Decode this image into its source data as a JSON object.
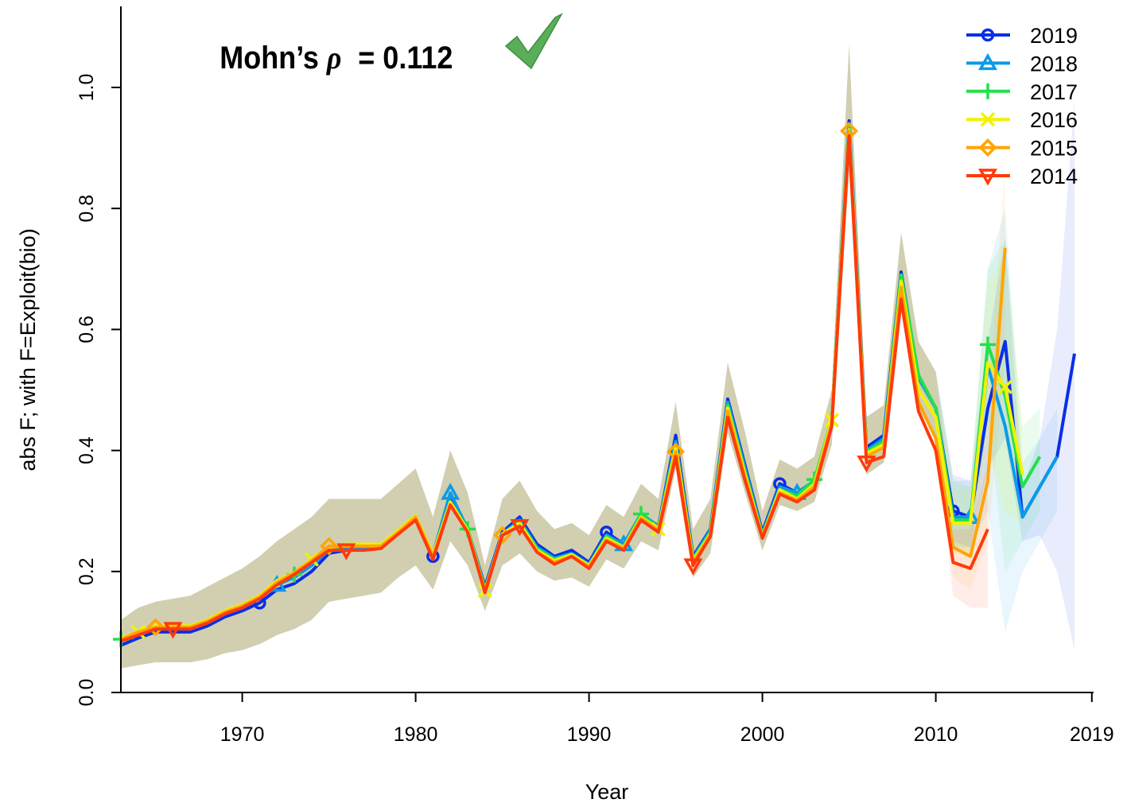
{
  "chart_data": {
    "type": "line",
    "x_label": "Year",
    "y_label": "abs F; with F=Exploit(bio)",
    "annotation": {
      "text": "Mohn’s",
      "symbol": "ρ",
      "value_text": "= 0.112"
    },
    "legend": "top-right",
    "x": [
      1963,
      1964,
      1965,
      1966,
      1967,
      1968,
      1969,
      1970,
      1971,
      1972,
      1973,
      1974,
      1975,
      1976,
      1977,
      1978,
      1979,
      1980,
      1981,
      1982,
      1983,
      1984,
      1985,
      1986,
      1987,
      1988,
      1989,
      1990,
      1991,
      1992,
      1993,
      1994,
      1995,
      1996,
      1997,
      1998,
      1999,
      2000,
      2001,
      2002,
      2003,
      2004,
      2005,
      2006,
      2007,
      2008,
      2009,
      2010,
      2011,
      2012,
      2013,
      2014,
      2015,
      2016,
      2017,
      2018
    ],
    "xlim": [
      1963,
      2019.1
    ],
    "xticks": [
      1970,
      1980,
      1990,
      2000,
      2010,
      2019
    ],
    "ylim": [
      0,
      1.134
    ],
    "yticks": [
      {
        "value": 0,
        "label": "0.0"
      },
      {
        "value": 0.2,
        "label": "0.2"
      },
      {
        "value": 0.4,
        "label": "0.4"
      },
      {
        "value": 0.6,
        "label": "0.6"
      },
      {
        "value": 0.8,
        "label": "0.8"
      },
      {
        "value": 1,
        "label": "1.0"
      }
    ],
    "series": [
      {
        "name": "2019",
        "color": "#0a2ee6",
        "marker": "circle",
        "values": [
          0.078,
          0.09,
          0.1,
          0.1,
          0.1,
          0.11,
          0.125,
          0.135,
          0.148,
          0.17,
          0.18,
          0.2,
          0.23,
          0.235,
          0.24,
          0.24,
          0.265,
          0.285,
          0.225,
          0.32,
          0.27,
          0.175,
          0.265,
          0.29,
          0.245,
          0.225,
          0.235,
          0.215,
          0.265,
          0.245,
          0.295,
          0.275,
          0.425,
          0.225,
          0.27,
          0.485,
          0.375,
          0.265,
          0.345,
          0.33,
          0.35,
          0.45,
          0.945,
          0.405,
          0.425,
          0.695,
          0.52,
          0.47,
          0.3,
          0.29,
          0.47,
          0.58,
          0.29,
          0.34,
          0.39,
          0.56
        ],
        "lower": [
          0.04,
          0.045,
          0.05,
          0.05,
          0.05,
          0.055,
          0.065,
          0.07,
          0.08,
          0.095,
          0.105,
          0.12,
          0.15,
          0.155,
          0.16,
          0.165,
          0.19,
          0.21,
          0.17,
          0.25,
          0.21,
          0.135,
          0.21,
          0.23,
          0.2,
          0.185,
          0.19,
          0.175,
          0.22,
          0.205,
          0.25,
          0.235,
          0.37,
          0.19,
          0.23,
          0.43,
          0.33,
          0.235,
          0.31,
          0.3,
          0.315,
          0.41,
          0.86,
          0.36,
          0.38,
          0.63,
          0.47,
          0.42,
          0.25,
          0.24,
          0.37,
          0.42,
          0.25,
          0.26,
          0.2,
          0.07
        ],
        "upper": [
          0.12,
          0.14,
          0.15,
          0.155,
          0.16,
          0.175,
          0.19,
          0.205,
          0.225,
          0.25,
          0.27,
          0.29,
          0.32,
          0.32,
          0.32,
          0.32,
          0.345,
          0.37,
          0.29,
          0.4,
          0.33,
          0.21,
          0.32,
          0.35,
          0.3,
          0.27,
          0.28,
          0.26,
          0.31,
          0.29,
          0.345,
          0.32,
          0.48,
          0.27,
          0.32,
          0.545,
          0.43,
          0.3,
          0.385,
          0.37,
          0.39,
          0.5,
          1.07,
          0.455,
          0.475,
          0.76,
          0.58,
          0.53,
          0.36,
          0.35,
          0.58,
          0.75,
          0.34,
          0.42,
          0.6,
          0.98
        ]
      },
      {
        "name": "2018",
        "color": "#0a9be8",
        "marker": "triangle",
        "values": [
          0.085,
          0.095,
          0.105,
          0.105,
          0.105,
          0.115,
          0.13,
          0.14,
          0.155,
          0.178,
          0.19,
          0.21,
          0.235,
          0.24,
          0.24,
          0.24,
          0.265,
          0.29,
          0.228,
          0.33,
          0.27,
          0.172,
          0.262,
          0.285,
          0.24,
          0.222,
          0.23,
          0.212,
          0.26,
          0.245,
          0.295,
          0.275,
          0.415,
          0.222,
          0.268,
          0.48,
          0.37,
          0.262,
          0.34,
          0.33,
          0.35,
          0.45,
          0.94,
          0.4,
          0.42,
          0.69,
          0.52,
          0.47,
          0.29,
          0.29,
          0.54,
          0.44,
          0.29,
          0.34,
          0.39,
          null
        ],
        "lower": [
          0.04,
          0.045,
          0.05,
          0.05,
          0.05,
          0.055,
          0.065,
          0.07,
          0.08,
          0.095,
          0.105,
          0.12,
          0.15,
          0.155,
          0.16,
          0.165,
          0.19,
          0.21,
          0.17,
          0.25,
          0.21,
          0.135,
          0.21,
          0.23,
          0.2,
          0.185,
          0.19,
          0.175,
          0.22,
          0.205,
          0.25,
          0.235,
          0.37,
          0.19,
          0.23,
          0.43,
          0.33,
          0.235,
          0.31,
          0.3,
          0.315,
          0.41,
          0.86,
          0.36,
          0.38,
          0.63,
          0.47,
          0.42,
          0.24,
          0.24,
          0.3,
          0.1,
          0.2,
          0.25,
          0.3,
          null
        ],
        "upper": [
          0.12,
          0.14,
          0.15,
          0.155,
          0.16,
          0.175,
          0.19,
          0.205,
          0.225,
          0.25,
          0.27,
          0.29,
          0.32,
          0.32,
          0.32,
          0.32,
          0.345,
          0.37,
          0.29,
          0.4,
          0.33,
          0.21,
          0.32,
          0.35,
          0.3,
          0.27,
          0.28,
          0.26,
          0.31,
          0.29,
          0.345,
          0.32,
          0.48,
          0.27,
          0.32,
          0.545,
          0.43,
          0.3,
          0.385,
          0.37,
          0.39,
          0.5,
          1.07,
          0.455,
          0.475,
          0.76,
          0.58,
          0.53,
          0.35,
          0.35,
          0.7,
          0.8,
          0.38,
          0.42,
          0.47,
          null
        ]
      },
      {
        "name": "2017",
        "color": "#22e04a",
        "marker": "plus",
        "values": [
          0.088,
          0.098,
          0.108,
          0.108,
          0.108,
          0.118,
          0.133,
          0.143,
          0.158,
          0.182,
          0.195,
          0.215,
          0.238,
          0.242,
          0.242,
          0.242,
          0.265,
          0.29,
          0.228,
          0.315,
          0.27,
          0.17,
          0.26,
          0.282,
          0.238,
          0.22,
          0.228,
          0.21,
          0.258,
          0.24,
          0.295,
          0.272,
          0.41,
          0.22,
          0.265,
          0.475,
          0.365,
          0.26,
          0.335,
          0.325,
          0.352,
          0.45,
          0.935,
          0.398,
          0.415,
          0.69,
          0.525,
          0.47,
          0.285,
          0.285,
          0.575,
          0.49,
          0.34,
          0.39,
          null,
          null
        ],
        "lower": [
          0.04,
          0.045,
          0.05,
          0.05,
          0.05,
          0.055,
          0.065,
          0.07,
          0.08,
          0.095,
          0.105,
          0.12,
          0.15,
          0.155,
          0.16,
          0.165,
          0.19,
          0.21,
          0.17,
          0.25,
          0.21,
          0.135,
          0.21,
          0.23,
          0.2,
          0.185,
          0.19,
          0.175,
          0.22,
          0.205,
          0.25,
          0.235,
          0.37,
          0.19,
          0.23,
          0.43,
          0.33,
          0.235,
          0.31,
          0.3,
          0.315,
          0.41,
          0.86,
          0.36,
          0.38,
          0.63,
          0.47,
          0.42,
          0.24,
          0.23,
          0.45,
          0.2,
          0.25,
          0.3,
          null,
          null
        ],
        "upper": [
          0.12,
          0.14,
          0.15,
          0.155,
          0.16,
          0.175,
          0.19,
          0.205,
          0.225,
          0.25,
          0.27,
          0.29,
          0.32,
          0.32,
          0.32,
          0.32,
          0.345,
          0.37,
          0.29,
          0.4,
          0.33,
          0.21,
          0.32,
          0.35,
          0.3,
          0.27,
          0.28,
          0.26,
          0.31,
          0.29,
          0.345,
          0.32,
          0.48,
          0.27,
          0.32,
          0.545,
          0.43,
          0.3,
          0.385,
          0.37,
          0.39,
          0.5,
          1.07,
          0.455,
          0.475,
          0.76,
          0.58,
          0.53,
          0.35,
          0.34,
          0.7,
          0.75,
          0.44,
          0.47,
          null,
          null
        ]
      },
      {
        "name": "2016",
        "color": "#f2f200",
        "marker": "cross",
        "values": [
          0.09,
          0.1,
          0.11,
          0.11,
          0.11,
          0.12,
          0.135,
          0.145,
          0.16,
          0.185,
          0.198,
          0.22,
          0.24,
          0.245,
          0.245,
          0.245,
          0.268,
          0.292,
          0.228,
          0.315,
          0.268,
          0.168,
          0.262,
          0.28,
          0.235,
          0.218,
          0.228,
          0.21,
          0.255,
          0.24,
          0.29,
          0.27,
          0.405,
          0.218,
          0.262,
          0.47,
          0.36,
          0.258,
          0.335,
          0.32,
          0.345,
          0.45,
          0.93,
          0.395,
          0.41,
          0.68,
          0.5,
          0.455,
          0.28,
          0.28,
          0.545,
          0.505,
          0.36,
          null,
          null,
          null
        ],
        "lower": [
          0.04,
          0.045,
          0.05,
          0.05,
          0.05,
          0.055,
          0.065,
          0.07,
          0.08,
          0.095,
          0.105,
          0.12,
          0.15,
          0.155,
          0.16,
          0.165,
          0.19,
          0.21,
          0.17,
          0.25,
          0.21,
          0.135,
          0.21,
          0.23,
          0.2,
          0.185,
          0.19,
          0.175,
          0.22,
          0.205,
          0.25,
          0.235,
          0.37,
          0.19,
          0.23,
          0.43,
          0.33,
          0.235,
          0.31,
          0.3,
          0.315,
          0.41,
          0.86,
          0.36,
          0.38,
          0.63,
          0.47,
          0.42,
          0.23,
          0.23,
          0.42,
          0.3,
          0.28,
          null,
          null,
          null
        ],
        "upper": [
          0.12,
          0.14,
          0.15,
          0.155,
          0.16,
          0.175,
          0.19,
          0.205,
          0.225,
          0.25,
          0.27,
          0.29,
          0.32,
          0.32,
          0.32,
          0.32,
          0.345,
          0.37,
          0.29,
          0.4,
          0.33,
          0.21,
          0.32,
          0.35,
          0.3,
          0.27,
          0.28,
          0.26,
          0.31,
          0.29,
          0.345,
          0.32,
          0.48,
          0.27,
          0.32,
          0.545,
          0.43,
          0.3,
          0.385,
          0.37,
          0.39,
          0.5,
          1.07,
          0.455,
          0.475,
          0.76,
          0.58,
          0.53,
          0.34,
          0.34,
          0.68,
          0.72,
          0.45,
          null,
          null,
          null
        ]
      },
      {
        "name": "2015",
        "color": "#ffa500",
        "marker": "diamond",
        "values": [
          0.088,
          0.1,
          0.108,
          0.108,
          0.108,
          0.118,
          0.133,
          0.143,
          0.158,
          0.182,
          0.198,
          0.218,
          0.242,
          0.242,
          0.242,
          0.242,
          0.265,
          0.29,
          0.225,
          0.31,
          0.265,
          0.168,
          0.26,
          0.275,
          0.232,
          0.215,
          0.225,
          0.208,
          0.252,
          0.238,
          0.288,
          0.268,
          0.398,
          0.215,
          0.26,
          0.465,
          0.355,
          0.258,
          0.33,
          0.318,
          0.34,
          0.445,
          0.928,
          0.39,
          0.405,
          0.67,
          0.48,
          0.42,
          0.24,
          0.225,
          0.35,
          0.735,
          null,
          null,
          null,
          null
        ],
        "lower": [
          0.04,
          0.045,
          0.05,
          0.05,
          0.05,
          0.055,
          0.065,
          0.07,
          0.08,
          0.095,
          0.105,
          0.12,
          0.15,
          0.155,
          0.16,
          0.165,
          0.19,
          0.21,
          0.17,
          0.25,
          0.21,
          0.135,
          0.21,
          0.23,
          0.2,
          0.185,
          0.19,
          0.175,
          0.22,
          0.205,
          0.25,
          0.235,
          0.37,
          0.19,
          0.23,
          0.43,
          0.33,
          0.235,
          0.31,
          0.3,
          0.315,
          0.41,
          0.86,
          0.36,
          0.38,
          0.63,
          0.47,
          0.42,
          0.19,
          0.17,
          0.25,
          0.55,
          null,
          null,
          null,
          null
        ],
        "upper": [
          0.12,
          0.14,
          0.15,
          0.155,
          0.16,
          0.175,
          0.19,
          0.205,
          0.225,
          0.25,
          0.27,
          0.29,
          0.32,
          0.32,
          0.32,
          0.32,
          0.345,
          0.37,
          0.29,
          0.4,
          0.33,
          0.21,
          0.32,
          0.35,
          0.3,
          0.27,
          0.28,
          0.26,
          0.31,
          0.29,
          0.345,
          0.32,
          0.48,
          0.27,
          0.32,
          0.545,
          0.43,
          0.3,
          0.385,
          0.37,
          0.39,
          0.5,
          1.07,
          0.455,
          0.475,
          0.76,
          0.58,
          0.53,
          0.3,
          0.29,
          0.46,
          0.88,
          null,
          null,
          null,
          null
        ]
      },
      {
        "name": "2014",
        "color": "#ff3a0a",
        "marker": "triangle-down",
        "values": [
          0.085,
          0.095,
          0.105,
          0.105,
          0.105,
          0.115,
          0.13,
          0.14,
          0.155,
          0.178,
          0.195,
          0.215,
          0.235,
          0.235,
          0.235,
          0.238,
          0.262,
          0.285,
          0.22,
          0.31,
          0.265,
          0.165,
          0.26,
          0.275,
          0.232,
          0.212,
          0.225,
          0.205,
          0.25,
          0.235,
          0.285,
          0.265,
          0.39,
          0.21,
          0.258,
          0.455,
          0.35,
          0.255,
          0.328,
          0.315,
          0.335,
          0.44,
          0.92,
          0.38,
          0.39,
          0.65,
          0.465,
          0.4,
          0.215,
          0.205,
          0.27,
          null,
          null,
          null,
          null,
          null
        ],
        "lower": [
          0.04,
          0.045,
          0.05,
          0.05,
          0.05,
          0.055,
          0.065,
          0.07,
          0.08,
          0.095,
          0.105,
          0.12,
          0.15,
          0.155,
          0.16,
          0.165,
          0.19,
          0.21,
          0.17,
          0.25,
          0.21,
          0.135,
          0.21,
          0.23,
          0.2,
          0.185,
          0.19,
          0.175,
          0.22,
          0.205,
          0.25,
          0.235,
          0.37,
          0.19,
          0.23,
          0.43,
          0.33,
          0.235,
          0.31,
          0.3,
          0.315,
          0.41,
          0.86,
          0.36,
          0.38,
          0.63,
          0.47,
          0.42,
          0.16,
          0.14,
          0.14,
          null,
          null,
          null,
          null,
          null
        ],
        "upper": [
          0.12,
          0.14,
          0.15,
          0.155,
          0.16,
          0.175,
          0.19,
          0.205,
          0.225,
          0.25,
          0.27,
          0.29,
          0.32,
          0.32,
          0.32,
          0.32,
          0.345,
          0.37,
          0.29,
          0.4,
          0.33,
          0.21,
          0.32,
          0.35,
          0.3,
          0.27,
          0.28,
          0.26,
          0.31,
          0.29,
          0.345,
          0.32,
          0.48,
          0.27,
          0.32,
          0.545,
          0.43,
          0.3,
          0.385,
          0.37,
          0.39,
          0.5,
          1.07,
          0.455,
          0.475,
          0.76,
          0.58,
          0.53,
          0.27,
          0.27,
          0.38,
          null,
          null,
          null,
          null,
          null
        ]
      }
    ]
  }
}
